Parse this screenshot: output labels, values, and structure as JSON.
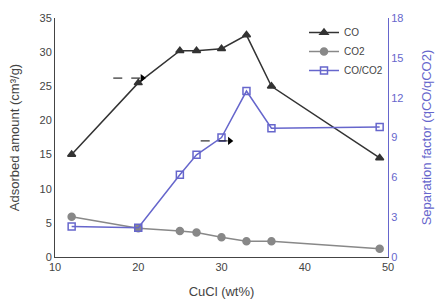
{
  "chart_data": {
    "type": "line",
    "x_label": "CuCl (wt%)",
    "y_label": "Adsorbed amount (cm³/g)",
    "y2_label": "Separation factor (qCO/qCO2)",
    "x": [
      12,
      20,
      25,
      27,
      30,
      33,
      36,
      49
    ],
    "series": [
      {
        "name": "CO",
        "color": "#333333",
        "marker": "triangle-up",
        "line_style": "solid",
        "values": [
          15,
          25.5,
          30.2,
          30.2,
          30.5,
          32.5,
          25,
          14.5
        ]
      },
      {
        "name": "CO2",
        "color": "#888888",
        "marker": "circle",
        "line_style": "solid",
        "values": [
          5.9,
          4.2,
          3.8,
          3.6,
          2.9,
          2.3,
          2.3,
          1.2
        ]
      },
      {
        "name": "CO/CO2",
        "color": "#6666cc",
        "marker": "square-open",
        "line_style": "solid",
        "axis": "y2",
        "values": [
          2.3,
          2.2,
          6.2,
          7.7,
          9.0,
          12.5,
          9.7,
          9.8
        ]
      }
    ],
    "xlim": [
      10,
      50
    ],
    "ylim": [
      0,
      35
    ],
    "y2lim": [
      0,
      18
    ],
    "xticks": [
      10,
      20,
      30,
      40,
      50
    ],
    "yticks": [
      0,
      5,
      10,
      15,
      20,
      25,
      30,
      35
    ],
    "y2ticks": [
      0,
      3,
      6,
      9,
      12,
      15,
      18
    ],
    "grid": false,
    "legend": "upper right",
    "annotations": [
      {
        "from": [
          17.0,
          26.2
        ],
        "to": [
          20.5,
          26.2
        ],
        "line_style": "dashed"
      },
      {
        "from": [
          27.5,
          17.0
        ],
        "to": [
          31.0,
          17.0
        ],
        "line_style": "dashed"
      }
    ]
  }
}
